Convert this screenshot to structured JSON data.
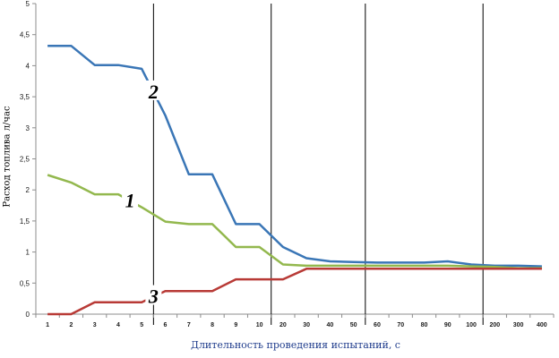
{
  "chart_data": {
    "type": "line",
    "xlabel": "Длительность проведения испытаний, с",
    "ylabel": "Расход топлива л/час",
    "categories": [
      "1",
      "2",
      "3",
      "4",
      "5",
      "6",
      "7",
      "8",
      "9",
      "10",
      "20",
      "30",
      "40",
      "50",
      "60",
      "70",
      "80",
      "90",
      "100",
      "200",
      "300",
      "400"
    ],
    "ylim": [
      0,
      5
    ],
    "yticks": [
      "0",
      "0,5",
      "1",
      "1,5",
      "2",
      "2,5",
      "3",
      "3,5",
      "4",
      "4,5",
      "5"
    ],
    "ytick_values": [
      0,
      0.5,
      1,
      1.5,
      2,
      2.5,
      3,
      3.5,
      4,
      4.5,
      5
    ],
    "grid": false,
    "series": [
      {
        "name": "2",
        "color": "#3a76b6",
        "values": [
          4.32,
          4.32,
          4.01,
          4.01,
          3.95,
          3.2,
          2.25,
          2.25,
          1.45,
          1.45,
          1.08,
          0.9,
          0.85,
          0.84,
          0.83,
          0.83,
          0.83,
          0.85,
          0.8,
          0.78,
          0.78,
          0.77
        ]
      },
      {
        "name": "1",
        "color": "#93b84e",
        "values": [
          2.24,
          2.12,
          1.93,
          1.93,
          1.72,
          1.49,
          1.45,
          1.45,
          1.08,
          1.08,
          0.8,
          0.78,
          0.78,
          0.78,
          0.78,
          0.78,
          0.78,
          0.78,
          0.77,
          0.76,
          0.74,
          0.74
        ]
      },
      {
        "name": "3",
        "color": "#b83a36",
        "values": [
          0,
          0,
          0.19,
          0.19,
          0.19,
          0.37,
          0.37,
          0.37,
          0.56,
          0.56,
          0.56,
          0.73,
          0.73,
          0.73,
          0.73,
          0.73,
          0.73,
          0.73,
          0.73,
          0.73,
          0.73,
          0.73
        ]
      }
    ],
    "annotations": [
      {
        "text": "2",
        "series": "2",
        "category": "6"
      },
      {
        "text": "1",
        "series": "1",
        "category": "5"
      },
      {
        "text": "3",
        "series": "3",
        "category": "6"
      }
    ],
    "separators_after": [
      "5",
      "10",
      "50",
      "100"
    ]
  }
}
